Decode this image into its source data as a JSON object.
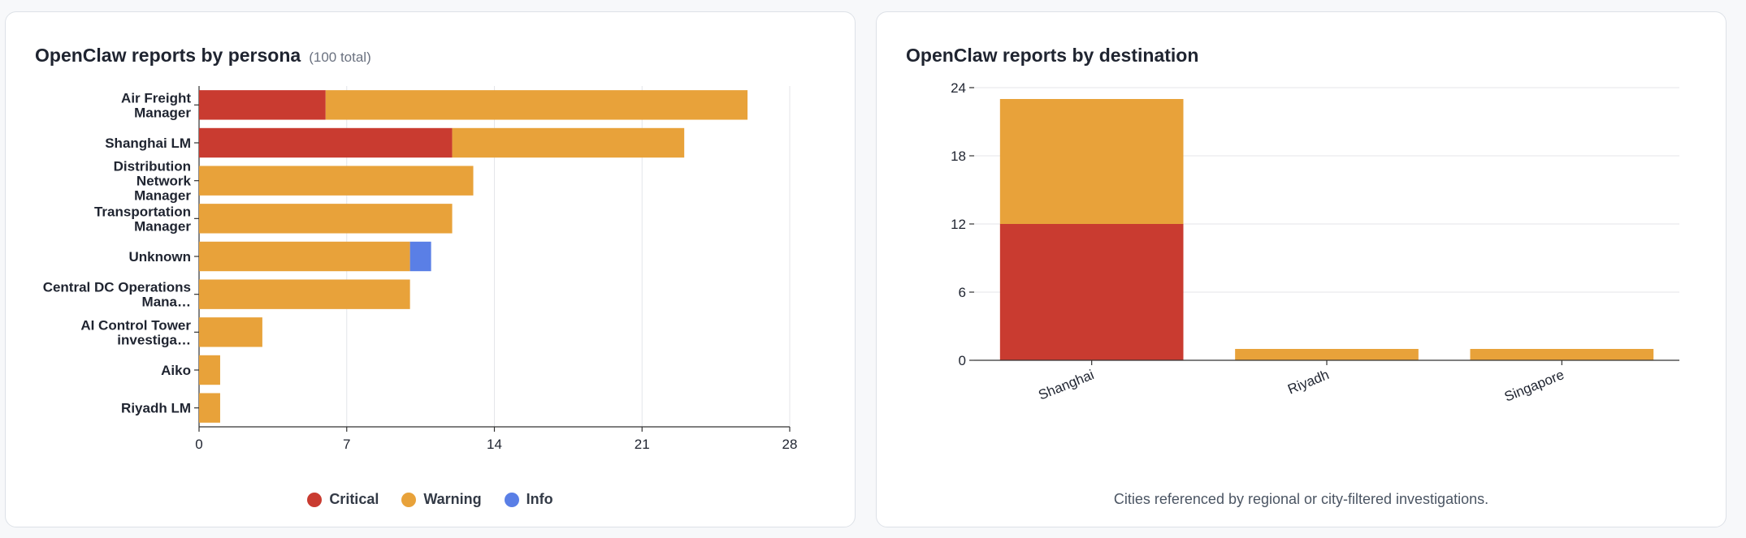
{
  "left_panel": {
    "title": "OpenClaw reports by persona",
    "subtitle": "(100 total)",
    "legend": [
      {
        "label": "Critical",
        "color": "#c93b30"
      },
      {
        "label": "Warning",
        "color": "#e8a23a"
      },
      {
        "label": "Info",
        "color": "#5a7fe6"
      }
    ]
  },
  "right_panel": {
    "title": "OpenClaw reports by destination",
    "caption": "Cities referenced by regional or city-filtered investigations."
  },
  "chart_data": [
    {
      "type": "bar",
      "orientation": "horizontal",
      "stacked": true,
      "title": "OpenClaw reports by persona",
      "categories": [
        [
          "Air Freight",
          "Manager"
        ],
        [
          "Shanghai LM"
        ],
        [
          "Distribution",
          "Network",
          "Manager"
        ],
        [
          "Transportation",
          "Manager"
        ],
        [
          "Unknown"
        ],
        [
          "Central DC Operations",
          "Mana…"
        ],
        [
          "AI Control Tower",
          "investiga…"
        ],
        [
          "Aiko"
        ],
        [
          "Riyadh LM"
        ]
      ],
      "series": [
        {
          "name": "Critical",
          "color": "#c93b30",
          "values": [
            6,
            12,
            0,
            0,
            0,
            0,
            0,
            0,
            0
          ]
        },
        {
          "name": "Warning",
          "color": "#e8a23a",
          "values": [
            20,
            11,
            13,
            12,
            10,
            10,
            3,
            1,
            1
          ]
        },
        {
          "name": "Info",
          "color": "#5a7fe6",
          "values": [
            0,
            0,
            0,
            0,
            1,
            0,
            0,
            0,
            0
          ]
        }
      ],
      "xlim": [
        0,
        28
      ],
      "xticks": [
        0,
        7,
        14,
        21,
        28
      ],
      "grid": true,
      "legend_position": "bottom"
    },
    {
      "type": "bar",
      "orientation": "vertical",
      "stacked": true,
      "title": "OpenClaw reports by destination",
      "categories": [
        "Shanghai",
        "Riyadh",
        "Singapore"
      ],
      "series": [
        {
          "name": "Critical",
          "color": "#c93b30",
          "values": [
            12,
            0,
            0
          ]
        },
        {
          "name": "Warning",
          "color": "#e8a23a",
          "values": [
            11,
            1,
            1
          ]
        }
      ],
      "ylim": [
        0,
        24
      ],
      "yticks": [
        0,
        6,
        12,
        18,
        24
      ],
      "grid": true
    }
  ]
}
